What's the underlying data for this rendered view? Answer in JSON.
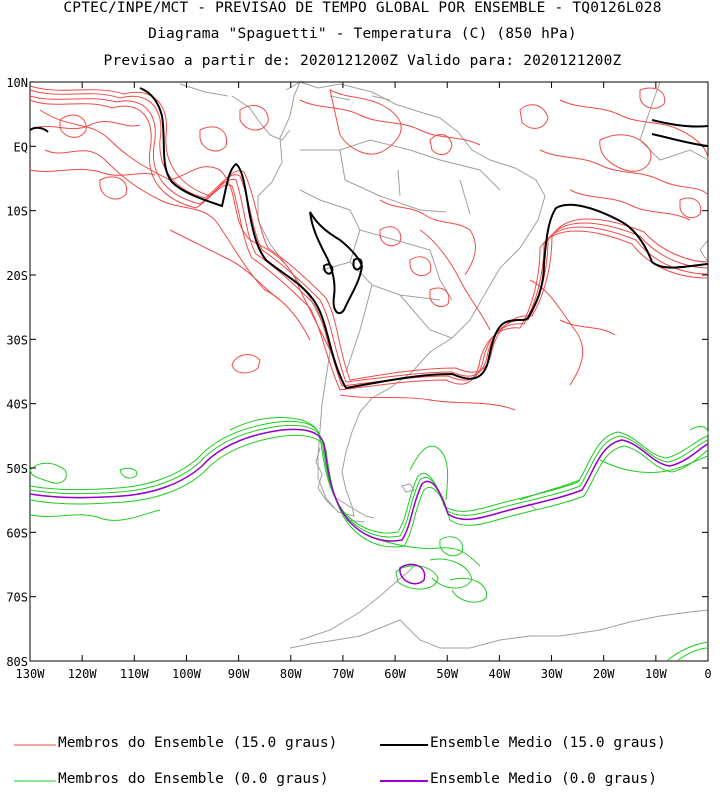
{
  "header": {
    "line1": "CPTEC/INPE/MCT - PREVISAO DE TEMPO GLOBAL POR ENSEMBLE - TQ0126L028",
    "line2": "Diagrama \"Spaguetti\" - Temperatura (C) (850 hPa)",
    "line3": "Previsao a partir de: 2020121200Z  Valido para: 2020121200Z"
  },
  "map": {
    "lat_labels": [
      "10N",
      "EQ",
      "10S",
      "20S",
      "30S",
      "40S",
      "50S",
      "60S",
      "70S",
      "80S"
    ],
    "lon_labels": [
      "130W",
      "120W",
      "110W",
      "100W",
      "90W",
      "80W",
      "70W",
      "60W",
      "50W",
      "40W",
      "30W",
      "20W",
      "10W",
      "0"
    ],
    "lat_range": [
      -80,
      10
    ],
    "lon_range": [
      -130,
      0
    ]
  },
  "colors": {
    "member_15": "#f04a4a",
    "mean_15": "#000000",
    "member_0": "#22cc22",
    "mean_0": "#9900cc",
    "land": "#a0a0a0"
  },
  "legend": {
    "member_15": "Membros do Ensemble (15.0 graus)",
    "mean_15": "Ensemble Medio (15.0 graus)",
    "member_0": "Membros do Ensemble (0.0 graus)",
    "mean_0": "Ensemble Medio (0.0 graus)"
  }
}
